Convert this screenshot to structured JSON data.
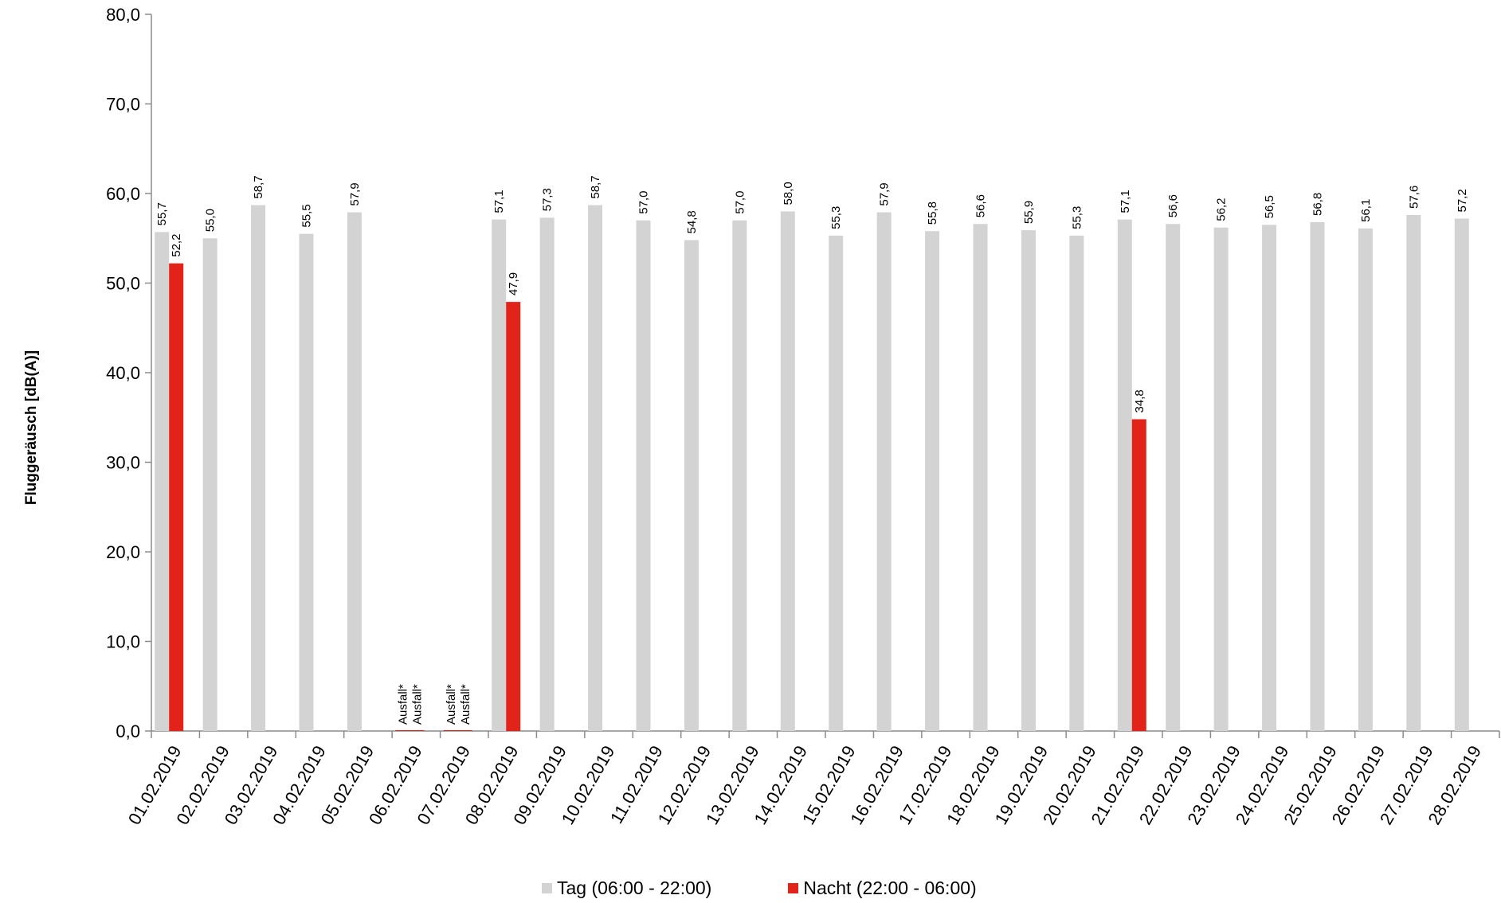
{
  "chart_data": {
    "type": "bar",
    "title": "",
    "xlabel": "",
    "ylabel": "Fluggeräusch [dB(A)]",
    "ylim": [
      0,
      80
    ],
    "yticks": [
      "0,0",
      "10,0",
      "20,0",
      "30,0",
      "40,0",
      "50,0",
      "60,0",
      "70,0",
      "80,0"
    ],
    "grid": false,
    "legend_position": "bottom",
    "categories": [
      "01.02.2019",
      "02.02.2019",
      "03.02.2019",
      "04.02.2019",
      "05.02.2019",
      "06.02.2019",
      "07.02.2019",
      "08.02.2019",
      "09.02.2019",
      "10.02.2019",
      "11.02.2019",
      "12.02.2019",
      "13.02.2019",
      "14.02.2019",
      "15.02.2019",
      "16.02.2019",
      "17.02.2019",
      "18.02.2019",
      "19.02.2019",
      "20.02.2019",
      "21.02.2019",
      "22.02.2019",
      "23.02.2019",
      "24.02.2019",
      "25.02.2019",
      "26.02.2019",
      "27.02.2019",
      "28.02.2019"
    ],
    "series": [
      {
        "name": "Tag (06:00 - 22:00)",
        "color": "#d3d3d3",
        "values": [
          55.7,
          55.0,
          58.7,
          55.5,
          57.9,
          null,
          null,
          57.1,
          57.3,
          58.7,
          57.0,
          54.8,
          57.0,
          58.0,
          55.3,
          57.9,
          55.8,
          56.6,
          55.9,
          55.3,
          57.1,
          56.6,
          56.2,
          56.5,
          56.8,
          56.1,
          57.6,
          57.2
        ],
        "labels": [
          "55,7",
          "55,0",
          "58,7",
          "55,5",
          "57,9",
          "Ausfall*",
          "Ausfall*",
          "57,1",
          "57,3",
          "58,7",
          "57,0",
          "54,8",
          "57,0",
          "58,0",
          "55,3",
          "57,9",
          "55,8",
          "56,6",
          "55,9",
          "55,3",
          "57,1",
          "56,6",
          "56,2",
          "56,5",
          "56,8",
          "56,1",
          "57,6",
          "57,2"
        ]
      },
      {
        "name": "Nacht (22:00 - 06:00)",
        "color": "#e2231a",
        "values": [
          52.2,
          null,
          null,
          null,
          null,
          null,
          null,
          47.9,
          null,
          null,
          null,
          null,
          null,
          null,
          null,
          null,
          null,
          null,
          null,
          null,
          34.8,
          null,
          null,
          null,
          null,
          null,
          null,
          null
        ],
        "labels": [
          "52,2",
          "",
          "",
          "",
          "",
          "Ausfall*",
          "Ausfall*",
          "47,9",
          "",
          "",
          "",
          "",
          "",
          "",
          "",
          "",
          "",
          "",
          "",
          "",
          "34,8",
          "",
          "",
          "",
          "",
          "",
          "",
          ""
        ]
      }
    ]
  }
}
